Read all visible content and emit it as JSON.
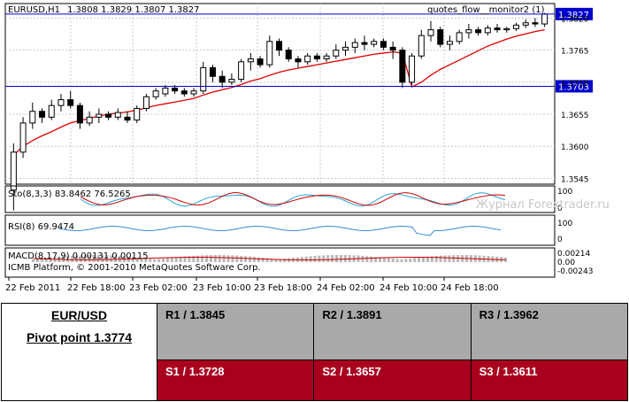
{
  "chart_data": {
    "type": "candlestick",
    "symbol_label": "EURUSD,H1",
    "ohlc_label": "1.3808 1.3829 1.3807 1.3827",
    "indicator_name": "quotes_flow__monitor2 (1)",
    "price_axis": {
      "min": 1.3535,
      "max": 1.3845,
      "ticks": [
        "1.3820",
        "1.3765",
        "1.3710",
        "1.3655",
        "1.3600",
        "1.3545"
      ]
    },
    "x_labels": [
      "22 Feb 2011",
      "22 Feb 18:00",
      "23 Feb 02:00",
      "23 Feb 10:00",
      "23 Feb 18:00",
      "24 Feb 02:00",
      "24 Feb 10:00",
      "24 Feb 18:00"
    ],
    "lines": [
      {
        "name": "upper-level",
        "price": 1.3827,
        "label": "1.3827",
        "color": "#0000cc"
      },
      {
        "name": "lower-level",
        "price": 1.3703,
        "label": "1.3703",
        "color": "#0000cc"
      }
    ],
    "candles": [
      [
        1.3525,
        1.3605,
        1.349,
        1.359
      ],
      [
        1.359,
        1.365,
        1.358,
        1.364
      ],
      [
        1.364,
        1.3675,
        1.363,
        1.366
      ],
      [
        1.366,
        1.3665,
        1.364,
        1.365
      ],
      [
        1.365,
        1.368,
        1.3645,
        1.367
      ],
      [
        1.367,
        1.369,
        1.366,
        1.368
      ],
      [
        1.368,
        1.3695,
        1.3665,
        1.367
      ],
      [
        1.367,
        1.3675,
        1.363,
        1.364
      ],
      [
        1.364,
        1.366,
        1.3635,
        1.365
      ],
      [
        1.365,
        1.3665,
        1.364,
        1.3655
      ],
      [
        1.3655,
        1.366,
        1.3645,
        1.365
      ],
      [
        1.365,
        1.3665,
        1.3645,
        1.3658
      ],
      [
        1.365,
        1.366,
        1.364,
        1.3645
      ],
      [
        1.3645,
        1.367,
        1.364,
        1.3665
      ],
      [
        1.3665,
        1.369,
        1.366,
        1.3685
      ],
      [
        1.3685,
        1.37,
        1.368,
        1.3695
      ],
      [
        1.369,
        1.3705,
        1.3685,
        1.37
      ],
      [
        1.37,
        1.3705,
        1.369,
        1.3695
      ],
      [
        1.3695,
        1.37,
        1.3685,
        1.369
      ],
      [
        1.369,
        1.37,
        1.3685,
        1.3695
      ],
      [
        1.3695,
        1.3745,
        1.369,
        1.3735
      ],
      [
        1.3735,
        1.374,
        1.371,
        1.372
      ],
      [
        1.372,
        1.373,
        1.37,
        1.371
      ],
      [
        1.371,
        1.3725,
        1.3705,
        1.3715
      ],
      [
        1.3715,
        1.375,
        1.371,
        1.3745
      ],
      [
        1.3745,
        1.376,
        1.373,
        1.375
      ],
      [
        1.375,
        1.3755,
        1.3735,
        1.374
      ],
      [
        1.374,
        1.379,
        1.3735,
        1.378
      ],
      [
        1.378,
        1.3785,
        1.3755,
        1.3765
      ],
      [
        1.3765,
        1.377,
        1.3745,
        1.375
      ],
      [
        1.375,
        1.3755,
        1.3735,
        1.3745
      ],
      [
        1.3745,
        1.376,
        1.374,
        1.3755
      ],
      [
        1.3755,
        1.376,
        1.3745,
        1.375
      ],
      [
        1.375,
        1.376,
        1.3745,
        1.3755
      ],
      [
        1.3755,
        1.3775,
        1.375,
        1.3765
      ],
      [
        1.3765,
        1.378,
        1.3755,
        1.377
      ],
      [
        1.377,
        1.3785,
        1.376,
        1.3778
      ],
      [
        1.3778,
        1.379,
        1.3765,
        1.3775
      ],
      [
        1.3775,
        1.3785,
        1.377,
        1.378
      ],
      [
        1.378,
        1.3785,
        1.3765,
        1.377
      ],
      [
        1.377,
        1.378,
        1.375,
        1.3765
      ],
      [
        1.3765,
        1.377,
        1.37,
        1.371
      ],
      [
        1.371,
        1.376,
        1.3705,
        1.3755
      ],
      [
        1.3755,
        1.38,
        1.375,
        1.379
      ],
      [
        1.379,
        1.3815,
        1.378,
        1.38
      ],
      [
        1.38,
        1.3805,
        1.377,
        1.3775
      ],
      [
        1.3775,
        1.379,
        1.3765,
        1.378
      ],
      [
        1.378,
        1.38,
        1.3775,
        1.3795
      ],
      [
        1.3795,
        1.381,
        1.3785,
        1.38
      ],
      [
        1.38,
        1.3805,
        1.379,
        1.3795
      ],
      [
        1.3795,
        1.3808,
        1.379,
        1.3803
      ],
      [
        1.3803,
        1.381,
        1.3795,
        1.38
      ],
      [
        1.38,
        1.3805,
        1.3795,
        1.3802
      ],
      [
        1.3802,
        1.3812,
        1.3798,
        1.3808
      ],
      [
        1.3808,
        1.3818,
        1.3803,
        1.3812
      ],
      [
        1.3812,
        1.382,
        1.3805,
        1.381
      ],
      [
        1.381,
        1.3829,
        1.3805,
        1.3827
      ]
    ],
    "moving_average": [
      1.3585,
      1.36,
      1.361,
      1.3618,
      1.3625,
      1.3633,
      1.364,
      1.3644,
      1.3648,
      1.3652,
      1.3655,
      1.3657,
      1.3659,
      1.3662,
      1.3666,
      1.367,
      1.3673,
      1.3676,
      1.3679,
      1.3682,
      1.3688,
      1.3693,
      1.3697,
      1.3701,
      1.3706,
      1.3712,
      1.3716,
      1.3722,
      1.3727,
      1.3731,
      1.3734,
      1.3737,
      1.374,
      1.3743,
      1.3746,
      1.3749,
      1.3752,
      1.3755,
      1.3758,
      1.376,
      1.3762,
      1.376,
      1.3702,
      1.371,
      1.3722,
      1.3732,
      1.374,
      1.3748,
      1.3756,
      1.3764,
      1.3772,
      1.3778,
      1.3784,
      1.3789,
      1.3793,
      1.3797,
      1.38
    ],
    "stochastic": {
      "label": "Sto(8,3,3) 83.8462 76.5265",
      "scale": [
        "100",
        "0"
      ]
    },
    "rsi": {
      "label": "RSI(8) 69.9474",
      "scale": [
        "100",
        "0"
      ]
    },
    "macd": {
      "label": "MACD(8,17,9) 0.00131 0.00115",
      "scale": [
        "0.00214",
        "0.00",
        "-0.00243"
      ]
    },
    "copyright": "ICMB Platform, © 2001-2010 MetaQuotes Software Corp.",
    "watermark": "Журнал Forextrader.ru"
  },
  "pivot": {
    "pair": "EUR/USD",
    "pivot_point": "Pivot point 1.3774",
    "resistances": [
      "R1 / 1.3845",
      "R2 / 1.3891",
      "R3 / 1.3962"
    ],
    "supports": [
      "S1 / 1.3728",
      "S2 / 1.3657",
      "S3 / 1.3611"
    ],
    "colors": {
      "resistance_bg": "#a9a9a9",
      "support_bg": "#a8001e"
    }
  }
}
